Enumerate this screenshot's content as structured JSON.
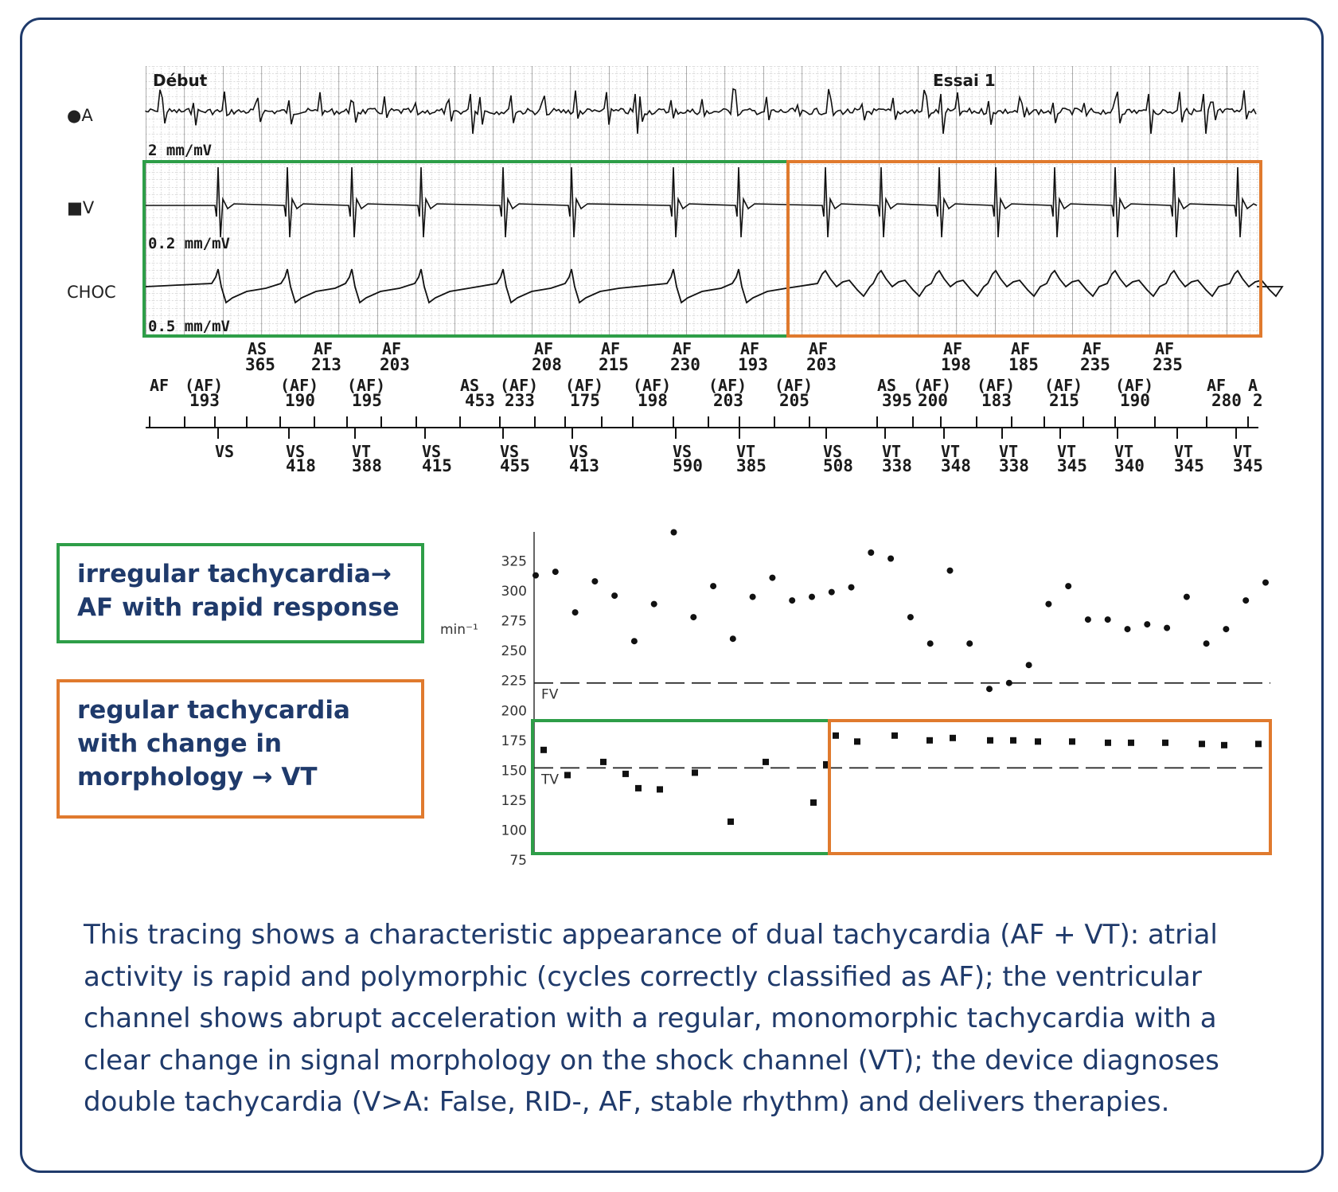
{
  "egm": {
    "header_left": "Début",
    "header_right": "Essai 1",
    "channels": [
      {
        "label": "●A",
        "gain": "2 mm/mV"
      },
      {
        "label": "■V",
        "gain": "0.2 mm/mV"
      },
      {
        "label": "CHOC",
        "gain": "0.5 mm/mV"
      }
    ],
    "upper_markers": [
      {
        "type": "AS",
        "value": "365"
      },
      {
        "type": "AF",
        "value": "213"
      },
      {
        "type": "AF",
        "value": "203"
      },
      {
        "type": "AF",
        "value": "208"
      },
      {
        "type": "AF",
        "value": "215"
      },
      {
        "type": "AF",
        "value": "230"
      },
      {
        "type": "AF",
        "value": "193"
      },
      {
        "type": "AF",
        "value": "203"
      },
      {
        "type": "AF",
        "value": "198"
      },
      {
        "type": "AF",
        "value": "185"
      },
      {
        "type": "AF",
        "value": "235"
      },
      {
        "type": "AF",
        "value": "235"
      }
    ],
    "atrial_markers": [
      {
        "type": "AF",
        "value": ""
      },
      {
        "type": "(AF)",
        "value": "193"
      },
      {
        "type": "(AF)",
        "value": "190"
      },
      {
        "type": "(AF)",
        "value": "195"
      },
      {
        "type": "AS",
        "value": "453"
      },
      {
        "type": "(AF)",
        "value": "233"
      },
      {
        "type": "(AF)",
        "value": "175"
      },
      {
        "type": "(AF)",
        "value": "198"
      },
      {
        "type": "(AF)",
        "value": "203"
      },
      {
        "type": "(AF)",
        "value": "205"
      },
      {
        "type": "AS",
        "value": "395"
      },
      {
        "type": "(AF)",
        "value": "200"
      },
      {
        "type": "(AF)",
        "value": "183"
      },
      {
        "type": "(AF)",
        "value": "215"
      },
      {
        "type": "(AF)",
        "value": "190"
      },
      {
        "type": "AF",
        "value": "280"
      },
      {
        "type": "A",
        "value": "2"
      }
    ],
    "ventricular_markers": [
      {
        "type": "VS",
        "value": ""
      },
      {
        "type": "VS",
        "value": "418"
      },
      {
        "type": "VT",
        "value": "388"
      },
      {
        "type": "VS",
        "value": "415"
      },
      {
        "type": "VS",
        "value": "455"
      },
      {
        "type": "VS",
        "value": "413"
      },
      {
        "type": "VS",
        "value": "590"
      },
      {
        "type": "VT",
        "value": "385"
      },
      {
        "type": "VS",
        "value": "508"
      },
      {
        "type": "VT",
        "value": "338"
      },
      {
        "type": "VT",
        "value": "348"
      },
      {
        "type": "VT",
        "value": "338"
      },
      {
        "type": "VT",
        "value": "345"
      },
      {
        "type": "VT",
        "value": "340"
      },
      {
        "type": "VT",
        "value": "345"
      },
      {
        "type": "VT",
        "value": "345"
      }
    ]
  },
  "chart_data": {
    "type": "scatter",
    "ylabel": "min⁻¹",
    "ylim": [
      75,
      350
    ],
    "yticks": [
      75,
      100,
      125,
      150,
      175,
      200,
      225,
      250,
      275,
      300,
      325
    ],
    "thresholds": [
      {
        "name": "FV",
        "value": 223
      },
      {
        "name": "TV",
        "value": 152
      }
    ],
    "series": [
      {
        "marker": "circle",
        "points": [
          [
            1,
            313
          ],
          [
            2,
            316
          ],
          [
            3,
            282
          ],
          [
            4,
            308
          ],
          [
            5,
            296
          ],
          [
            6,
            258
          ],
          [
            7,
            289
          ],
          [
            8,
            349
          ],
          [
            9,
            278
          ],
          [
            10,
            304
          ],
          [
            11,
            260
          ],
          [
            12,
            295
          ],
          [
            13,
            311
          ],
          [
            14,
            292
          ],
          [
            15,
            295
          ],
          [
            16,
            299
          ],
          [
            17,
            303
          ],
          [
            18,
            332
          ],
          [
            19,
            327
          ],
          [
            20,
            278
          ],
          [
            21,
            256
          ],
          [
            22,
            317
          ],
          [
            23,
            256
          ],
          [
            24,
            218
          ],
          [
            25,
            223
          ],
          [
            26,
            238
          ],
          [
            27,
            289
          ],
          [
            28,
            304
          ],
          [
            29,
            276
          ],
          [
            30,
            276
          ],
          [
            31,
            268
          ],
          [
            32,
            272
          ],
          [
            33,
            269
          ],
          [
            34,
            295
          ],
          [
            35,
            256
          ],
          [
            36,
            268
          ],
          [
            37,
            292
          ],
          [
            38,
            307
          ]
        ]
      },
      {
        "marker": "square",
        "points": [
          [
            1,
            167
          ],
          [
            2,
            146
          ],
          [
            3,
            157
          ],
          [
            4,
            147
          ],
          [
            5,
            135
          ],
          [
            6,
            134
          ],
          [
            7,
            148
          ],
          [
            8,
            107
          ],
          [
            9,
            157
          ],
          [
            10,
            123
          ],
          [
            11,
            155
          ],
          [
            12,
            179
          ],
          [
            13,
            174
          ],
          [
            14,
            179
          ],
          [
            15,
            175
          ],
          [
            16,
            177
          ],
          [
            17,
            175
          ],
          [
            18,
            175
          ],
          [
            19,
            174
          ],
          [
            20,
            174
          ],
          [
            21,
            173
          ],
          [
            22,
            173
          ],
          [
            23,
            173
          ],
          [
            24,
            172
          ],
          [
            25,
            171
          ],
          [
            26,
            172
          ]
        ]
      }
    ]
  },
  "callouts": {
    "af": {
      "line1": "irregular tachycardia→",
      "line2": "AF with rapid response"
    },
    "vt": {
      "line1": "regular tachycardia",
      "line2": "with change in",
      "line3": "morphology → VT"
    }
  },
  "caption": "This tracing shows a characteristic appearance of dual tachycardia (AF + VT): atrial activity is rapid and polymorphic (cycles correctly classified as AF); the ventricular channel shows abrupt acceleration with a regular, monomorphic tachycardia with a clear change in signal morphology on the shock channel (VT); the device diagnoses double tachycardia (V>A: False, RID-, AF, stable rhythm) and delivers therapies.",
  "colors": {
    "green": "#2e9e48",
    "orange": "#e07a2e",
    "navy": "#1f3a6b"
  }
}
